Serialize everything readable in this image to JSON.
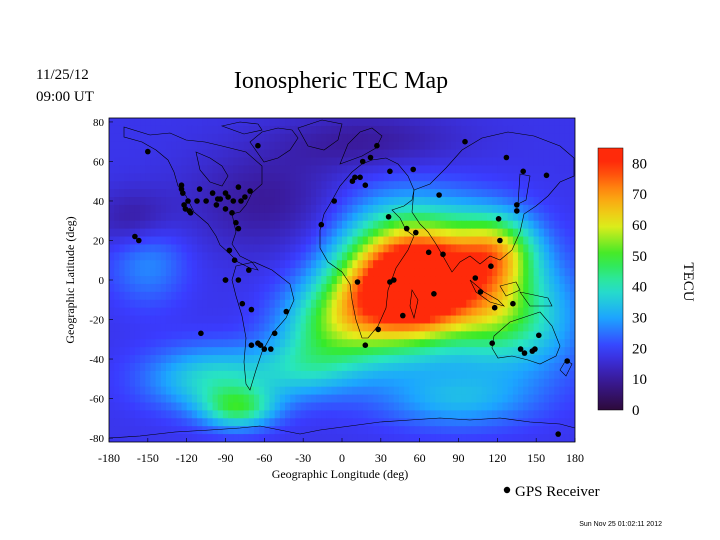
{
  "header": {
    "date": "11/25/12",
    "time": "09:00 UT",
    "title": "Ionospheric TEC Map"
  },
  "footer": {
    "stamp": "Sun Nov 25 01:02:11 2012",
    "legend_label": "GPS Receiver"
  },
  "colorbar": {
    "label": "TECU",
    "ticks": [
      "80",
      "70",
      "60",
      "50",
      "40",
      "30",
      "20",
      "10",
      "0"
    ],
    "range": [
      0,
      85
    ]
  },
  "colors": {
    "c0": "#2d0a3a",
    "c10": "#3a1a9a",
    "c20": "#3a3cff",
    "c30": "#1ca6ff",
    "c40": "#28e6c0",
    "c50": "#36ea2a",
    "c60": "#e4ec1a",
    "c70": "#ff9a10",
    "c80": "#ff2a0a",
    "dot": "#000000",
    "coast": "#000000"
  },
  "chart_data": {
    "type": "heatmap",
    "xlabel": "Geographic Longitude (deg)",
    "ylabel": "Geographic Latitude (deg)",
    "xlim": [
      -180,
      180
    ],
    "ylim": [
      -82,
      82
    ],
    "xticks": [
      "-180",
      "-150",
      "-120",
      "-90",
      "-60",
      "-30",
      "0",
      "30",
      "60",
      "90",
      "120",
      "150",
      "180"
    ],
    "yticks": [
      "80",
      "60",
      "40",
      "20",
      "0",
      "-20",
      "-40",
      "-60",
      "-80"
    ],
    "background_tec": 18,
    "tec_features": [
      {
        "lon": 60,
        "lat": -5,
        "tec": 62,
        "rlon": 38,
        "rlat": 26
      },
      {
        "lon": 75,
        "lat": 5,
        "tec": 55,
        "rlon": 50,
        "rlat": 30
      },
      {
        "lon": 30,
        "lat": 0,
        "tec": 44,
        "rlon": 40,
        "rlat": 36
      },
      {
        "lon": 10,
        "lat": -15,
        "tec": 40,
        "rlon": 35,
        "rlat": 25
      },
      {
        "lon": -20,
        "lat": -25,
        "tec": 34,
        "rlon": 35,
        "rlat": 22
      },
      {
        "lon": 120,
        "lat": 15,
        "tec": 48,
        "rlon": 30,
        "rlat": 18
      },
      {
        "lon": 115,
        "lat": -15,
        "tec": 40,
        "rlon": 35,
        "rlat": 25
      },
      {
        "lon": 150,
        "lat": -20,
        "tec": 32,
        "rlon": 40,
        "rlat": 30
      },
      {
        "lon": -100,
        "lat": -50,
        "tec": 38,
        "rlon": 50,
        "rlat": 16
      },
      {
        "lon": -80,
        "lat": -65,
        "tec": 42,
        "rlon": 28,
        "rlat": 10
      },
      {
        "lon": 90,
        "lat": -60,
        "tec": 32,
        "rlon": 55,
        "rlat": 15
      },
      {
        "lon": -30,
        "lat": -45,
        "tec": 30,
        "rlon": 40,
        "rlat": 15
      },
      {
        "lon": -150,
        "lat": 10,
        "tec": 28,
        "rlon": 30,
        "rlat": 22
      },
      {
        "lon": -60,
        "lat": 40,
        "tec": 10,
        "rlon": 60,
        "rlat": 25
      },
      {
        "lon": -160,
        "lat": 30,
        "tec": 9,
        "rlon": 30,
        "rlat": 15
      },
      {
        "lon": 20,
        "lat": 70,
        "tec": 10,
        "rlon": 70,
        "rlat": 15
      }
    ],
    "receivers": [
      [
        -150,
        65
      ],
      [
        -160,
        22
      ],
      [
        -157,
        20
      ],
      [
        -124,
        48
      ],
      [
        -124,
        46
      ],
      [
        -123,
        44
      ],
      [
        -122,
        38
      ],
      [
        -121,
        36
      ],
      [
        -117,
        34
      ],
      [
        -118,
        35
      ],
      [
        -119,
        40
      ],
      [
        -112,
        40
      ],
      [
        -110,
        46
      ],
      [
        -105,
        40
      ],
      [
        -97,
        38
      ],
      [
        -100,
        44
      ],
      [
        -96,
        41
      ],
      [
        -94,
        41
      ],
      [
        -90,
        44
      ],
      [
        -90,
        36
      ],
      [
        -85,
        34
      ],
      [
        -88,
        42
      ],
      [
        -84,
        40
      ],
      [
        -80,
        47
      ],
      [
        -78,
        40
      ],
      [
        -75,
        42
      ],
      [
        -71,
        45
      ],
      [
        -82,
        29
      ],
      [
        -80,
        26
      ],
      [
        -83,
        10
      ],
      [
        -87,
        15
      ],
      [
        -90,
        0
      ],
      [
        -72,
        5
      ],
      [
        -70,
        -15
      ],
      [
        -70,
        -33
      ],
      [
        -65,
        -32
      ],
      [
        -63,
        -33
      ],
      [
        -60,
        -35
      ],
      [
        -55,
        -35
      ],
      [
        -52,
        -27
      ],
      [
        -43,
        -16
      ],
      [
        -90,
        0
      ],
      [
        -109,
        -27
      ],
      [
        -80,
        0
      ],
      [
        -77,
        -12
      ],
      [
        -65,
        68
      ],
      [
        -16,
        28
      ],
      [
        -6,
        40
      ],
      [
        8,
        50
      ],
      [
        10,
        52
      ],
      [
        14,
        52
      ],
      [
        18,
        48
      ],
      [
        16,
        60
      ],
      [
        22,
        62
      ],
      [
        27,
        68
      ],
      [
        37,
        55
      ],
      [
        55,
        56
      ],
      [
        57,
        24
      ],
      [
        36,
        32
      ],
      [
        50,
        26
      ],
      [
        75,
        43
      ],
      [
        95,
        70
      ],
      [
        78,
        13
      ],
      [
        67,
        14
      ],
      [
        71,
        -7
      ],
      [
        37,
        -1
      ],
      [
        40,
        0
      ],
      [
        12,
        -1
      ],
      [
        28,
        -25
      ],
      [
        18,
        -33
      ],
      [
        47,
        -18
      ],
      [
        103,
        1
      ],
      [
        107,
        -6
      ],
      [
        115,
        7
      ],
      [
        121,
        31
      ],
      [
        135,
        35
      ],
      [
        135,
        38
      ],
      [
        140,
        55
      ],
      [
        158,
        53
      ],
      [
        127,
        62
      ],
      [
        116,
        -32
      ],
      [
        122,
        20
      ],
      [
        132,
        -12
      ],
      [
        147,
        -36
      ],
      [
        149,
        -35
      ],
      [
        152,
        -28
      ],
      [
        138,
        -35
      ],
      [
        141,
        -37
      ],
      [
        174,
        -41
      ],
      [
        167,
        -78
      ],
      [
        118,
        -14
      ]
    ]
  }
}
